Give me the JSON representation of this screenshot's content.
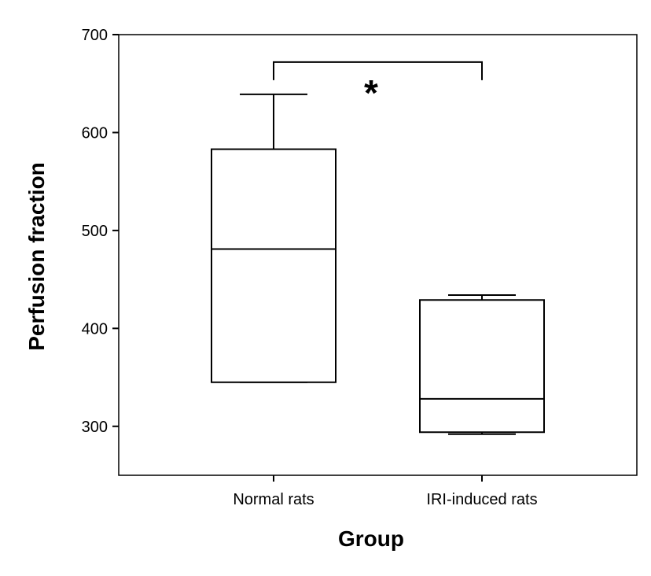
{
  "chart_data": {
    "type": "box",
    "xlabel": "Group",
    "ylabel": "Perfusion fraction",
    "ylim": [
      250,
      700
    ],
    "yticks": [
      300,
      400,
      500,
      600,
      700
    ],
    "categories": [
      "Normal rats",
      "IRI-induced rats"
    ],
    "boxes": [
      {
        "category": "Normal rats",
        "whisker_low": 345,
        "q1": 345,
        "median": 481,
        "q3": 583,
        "whisker_high": 639
      },
      {
        "category": "IRI-induced rats",
        "whisker_low": 292,
        "q1": 294,
        "median": 328,
        "q3": 429,
        "whisker_high": 434
      }
    ],
    "significance": {
      "between": [
        "Normal rats",
        "IRI-induced rats"
      ],
      "label": "*",
      "y": 672
    },
    "grid": false,
    "legend": "none",
    "colors": {
      "stroke": "#000000",
      "fill": "#ffffff"
    }
  }
}
